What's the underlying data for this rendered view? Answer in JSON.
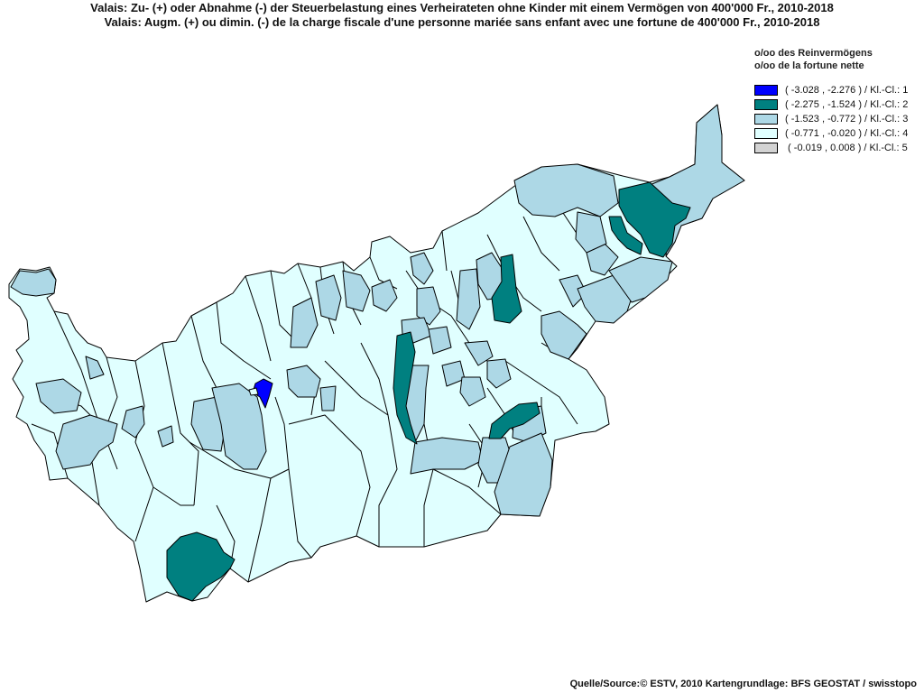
{
  "title_de": "Valais: Zu- (+) oder Abnahme (-) der Steuerbelastung  eines Verheirateten ohne Kinder mit einem Vermögen von 400'000 Fr., 2010-2018",
  "title_fr": "Valais: Augm. (+) ou dimin. (-) de la charge fiscale d'une personne mariée sans enfant avec une fortune de 400'000 Fr., 2010-2018",
  "legend": {
    "heading_de": "o/oo des Reinvermögens",
    "heading_fr": "o/oo de la fortune nette",
    "classes": [
      {
        "label": "( -3.028 , -2.276 ) / Kl.-Cl.: 1",
        "color": "#0000ff"
      },
      {
        "label": "( -2.275 , -1.524 ) / Kl.-Cl.: 2",
        "color": "#008080"
      },
      {
        "label": "( -1.523 , -0.772 ) / Kl.-Cl.: 3",
        "color": "#add8e6"
      },
      {
        "label": "( -0.771 , -0.020 ) / Kl.-Cl.: 4",
        "color": "#e0ffff"
      },
      {
        "label": " ( -0.019 , 0.008 ) / Kl.-Cl.: 5",
        "color": "#d3d3d3"
      }
    ]
  },
  "source": "Quelle/Source:© ESTV, 2010 Kartengrundlage: BFS GEOSTAT / swisstopo"
}
